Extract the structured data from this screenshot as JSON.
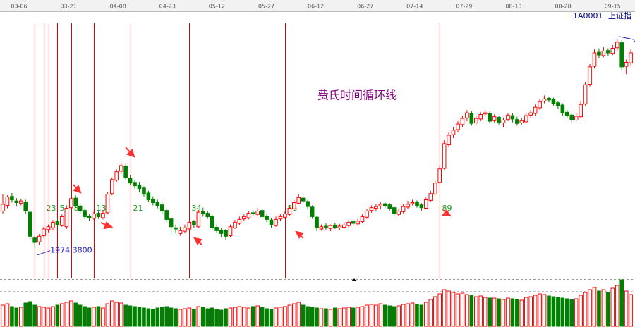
{
  "chart_data": {
    "type": "candlestick",
    "symbol": "1A0001",
    "name": "上证指",
    "annotation": "费氏时间循环线",
    "low_label": "1974.3800",
    "date_labels": [
      "03-06",
      "03-21",
      "04-08",
      "04-23",
      "05-12",
      "05-27",
      "06-12",
      "06-27",
      "07-14",
      "07-29",
      "08-13",
      "08-28",
      "09-15"
    ],
    "ylim": [
      1920,
      2391
    ],
    "up_color": "#ff0000",
    "down_color": "#008000",
    "candles": [
      [
        2040,
        2070,
        2035,
        2052
      ],
      [
        2050,
        2068,
        2045,
        2065
      ],
      [
        2066,
        2072,
        2055,
        2060
      ],
      [
        2058,
        2063,
        2048,
        2055
      ],
      [
        2054,
        2062,
        2050,
        2058
      ],
      [
        2056,
        2060,
        2035,
        2040
      ],
      [
        2038,
        2040,
        1990,
        1995
      ],
      [
        1992,
        1996,
        1974.38,
        1984
      ],
      [
        1985,
        1999,
        1980,
        1995
      ],
      [
        1996,
        2012,
        1992,
        2008
      ],
      [
        2007,
        2016,
        2002,
        2012
      ],
      [
        2010,
        2024,
        2006,
        2020
      ],
      [
        2021,
        2026,
        2010,
        2015
      ],
      [
        2014,
        2034,
        2012,
        2030
      ],
      [
        2012,
        2050,
        2008,
        2045
      ],
      [
        2046,
        2066,
        2042,
        2062
      ],
      [
        2063,
        2068,
        2046,
        2050
      ],
      [
        2049,
        2054,
        2036,
        2040
      ],
      [
        2041,
        2044,
        2026,
        2030
      ],
      [
        2031,
        2034,
        2022,
        2028
      ],
      [
        2027,
        2040,
        2024,
        2035
      ],
      [
        2036,
        2039,
        2026,
        2030
      ],
      [
        2028,
        2041,
        2025,
        2036
      ],
      [
        2037,
        2074,
        2034,
        2070
      ],
      [
        2071,
        2100,
        2068,
        2096
      ],
      [
        2095,
        2114,
        2092,
        2110
      ],
      [
        2111,
        2126,
        2106,
        2121
      ],
      [
        2120,
        2123,
        2096,
        2100
      ],
      [
        2099,
        2104,
        2086,
        2090
      ],
      [
        2091,
        2096,
        2080,
        2085
      ],
      [
        2086,
        2092,
        2074,
        2080
      ],
      [
        2081,
        2084,
        2066,
        2070
      ],
      [
        2072,
        2076,
        2056,
        2060
      ],
      [
        2061,
        2066,
        2050,
        2055
      ],
      [
        2056,
        2060,
        2045,
        2050
      ],
      [
        2051,
        2055,
        2035,
        2040
      ],
      [
        2041,
        2044,
        2020,
        2025
      ],
      [
        2026,
        2030,
        2002,
        2012
      ],
      [
        2010,
        2016,
        2000,
        2008
      ],
      [
        2000,
        2012,
        1996,
        2005
      ],
      [
        2004,
        2016,
        2000,
        2010
      ],
      [
        2008,
        2026,
        2005,
        2020
      ],
      [
        2021,
        2024,
        2010,
        2015
      ],
      [
        2012,
        2042,
        2010,
        2038
      ],
      [
        2039,
        2046,
        2030,
        2035
      ],
      [
        2036,
        2040,
        2026,
        2030
      ],
      [
        2031,
        2034,
        2006,
        2010
      ],
      [
        2011,
        2016,
        2000,
        2005
      ],
      [
        2006,
        2010,
        1994,
        2000
      ],
      [
        2005,
        2008,
        1988,
        1995
      ],
      [
        1996,
        2016,
        1994,
        2012
      ],
      [
        2010,
        2024,
        2008,
        2020
      ],
      [
        2018,
        2030,
        2015,
        2025
      ],
      [
        2026,
        2034,
        2022,
        2030
      ],
      [
        2028,
        2040,
        2025,
        2036
      ],
      [
        2037,
        2042,
        2030,
        2035
      ],
      [
        2034,
        2046,
        2031,
        2040
      ],
      [
        2041,
        2044,
        2026,
        2030
      ],
      [
        2031,
        2034,
        2020,
        2025
      ],
      [
        2024,
        2028,
        2010,
        2015
      ],
      [
        2014,
        2030,
        2012,
        2025
      ],
      [
        2026,
        2034,
        2022,
        2030
      ],
      [
        2029,
        2040,
        2026,
        2035
      ],
      [
        2034,
        2050,
        2032,
        2045
      ],
      [
        2044,
        2060,
        2042,
        2055
      ],
      [
        2054,
        2070,
        2052,
        2064
      ],
      [
        2063,
        2066,
        2054,
        2058
      ],
      [
        2057,
        2060,
        2044,
        2048
      ],
      [
        2047,
        2050,
        2026,
        2030
      ],
      [
        2029,
        2032,
        2004,
        2010
      ],
      [
        2008,
        2016,
        2005,
        2012
      ],
      [
        2013,
        2018,
        2006,
        2010
      ],
      [
        2009,
        2016,
        2004,
        2014
      ],
      [
        2015,
        2019,
        2008,
        2011
      ],
      [
        2010,
        2017,
        2006,
        2013
      ],
      [
        2011,
        2020,
        2008,
        2015
      ],
      [
        2014,
        2024,
        2010,
        2020
      ],
      [
        2021,
        2024,
        2014,
        2018
      ],
      [
        2017,
        2026,
        2014,
        2022
      ],
      [
        2021,
        2034,
        2018,
        2030
      ],
      [
        2029,
        2044,
        2026,
        2040
      ],
      [
        2041,
        2050,
        2037,
        2046
      ],
      [
        2045,
        2052,
        2040,
        2048
      ],
      [
        2049,
        2056,
        2044,
        2052
      ],
      [
        2053,
        2056,
        2046,
        2050
      ],
      [
        2051,
        2054,
        2041,
        2045
      ],
      [
        2046,
        2049,
        2030,
        2035
      ],
      [
        2034,
        2044,
        2031,
        2040
      ],
      [
        2039,
        2052,
        2036,
        2048
      ],
      [
        2047,
        2058,
        2044,
        2052
      ],
      [
        2053,
        2060,
        2050,
        2055
      ],
      [
        2056,
        2059,
        2046,
        2050
      ],
      [
        2051,
        2054,
        2040,
        2046
      ],
      [
        2045,
        2064,
        2043,
        2060
      ],
      [
        2059,
        2076,
        2056,
        2071
      ],
      [
        2070,
        2094,
        2068,
        2090
      ],
      [
        2091,
        2120,
        2088,
        2115
      ],
      [
        2116,
        2166,
        2114,
        2160
      ],
      [
        2158,
        2180,
        2154,
        2175
      ],
      [
        2176,
        2190,
        2170,
        2184
      ],
      [
        2185,
        2200,
        2180,
        2195
      ],
      [
        2194,
        2210,
        2190,
        2205
      ],
      [
        2206,
        2220,
        2200,
        2215
      ],
      [
        2214,
        2218,
        2192,
        2196
      ],
      [
        2197,
        2210,
        2194,
        2205
      ],
      [
        2204,
        2216,
        2200,
        2212
      ],
      [
        2213,
        2220,
        2208,
        2215
      ],
      [
        2214,
        2218,
        2196,
        2200
      ],
      [
        2201,
        2212,
        2198,
        2208
      ],
      [
        2207,
        2210,
        2194,
        2198
      ],
      [
        2197,
        2206,
        2190,
        2202
      ],
      [
        2203,
        2214,
        2200,
        2211
      ],
      [
        2210,
        2214,
        2198,
        2204
      ],
      [
        2203,
        2208,
        2192,
        2196
      ],
      [
        2197,
        2206,
        2194,
        2201
      ],
      [
        2199,
        2214,
        2196,
        2210
      ],
      [
        2211,
        2220,
        2206,
        2215
      ],
      [
        2214,
        2230,
        2210,
        2225
      ],
      [
        2224,
        2240,
        2220,
        2235
      ],
      [
        2236,
        2246,
        2232,
        2240
      ],
      [
        2241,
        2244,
        2234,
        2238
      ],
      [
        2239,
        2242,
        2228,
        2232
      ],
      [
        2233,
        2236,
        2222,
        2228
      ],
      [
        2229,
        2232,
        2210,
        2215
      ],
      [
        2216,
        2220,
        2205,
        2210
      ],
      [
        2211,
        2214,
        2198,
        2203
      ],
      [
        2202,
        2214,
        2200,
        2209
      ],
      [
        2208,
        2236,
        2205,
        2230
      ],
      [
        2231,
        2270,
        2228,
        2265
      ],
      [
        2266,
        2302,
        2262,
        2297
      ],
      [
        2298,
        2328,
        2294,
        2322
      ],
      [
        2323,
        2330,
        2312,
        2318
      ],
      [
        2317,
        2332,
        2314,
        2325
      ],
      [
        2326,
        2330,
        2316,
        2322
      ],
      [
        2321,
        2336,
        2318,
        2330
      ],
      [
        2331,
        2347,
        2326,
        2341
      ],
      [
        2340,
        2344,
        2290,
        2297
      ],
      [
        2298,
        2310,
        2284,
        2305
      ],
      [
        2304,
        2328,
        2300,
        2322
      ]
    ],
    "volume_ylim": [
      0,
      70
    ],
    "volume": [
      30,
      32,
      28,
      26,
      27,
      33,
      35,
      30,
      28,
      27,
      26,
      28,
      30,
      32,
      34,
      36,
      33,
      30,
      28,
      26,
      27,
      28,
      26,
      32,
      36,
      34,
      33,
      30,
      29,
      28,
      27,
      26,
      25,
      24,
      26,
      27,
      28,
      26,
      25,
      24,
      25,
      26,
      24,
      28,
      27,
      25,
      26,
      24,
      23,
      25,
      26,
      27,
      28,
      27,
      26,
      28,
      29,
      27,
      25,
      24,
      26,
      27,
      28,
      30,
      32,
      34,
      30,
      28,
      27,
      26,
      25,
      25,
      24,
      26,
      25,
      26,
      27,
      26,
      27,
      28,
      30,
      31,
      30,
      32,
      30,
      29,
      28,
      29,
      31,
      32,
      33,
      31,
      30,
      34,
      38,
      42,
      46,
      52,
      50,
      48,
      46,
      47,
      45,
      44,
      42,
      43,
      41,
      40,
      40,
      39,
      38,
      40,
      39,
      38,
      37,
      41,
      42,
      44,
      46,
      45,
      43,
      42,
      41,
      40,
      39,
      38,
      39,
      44,
      48,
      52,
      55,
      50,
      52,
      48,
      54,
      58,
      66,
      50,
      45
    ],
    "cycle": {
      "base": 7,
      "color": "#e00000",
      "label_color": "#20a020",
      "offsets": [
        0,
        2,
        3,
        5,
        8,
        13,
        21,
        34,
        55,
        89
      ]
    }
  }
}
